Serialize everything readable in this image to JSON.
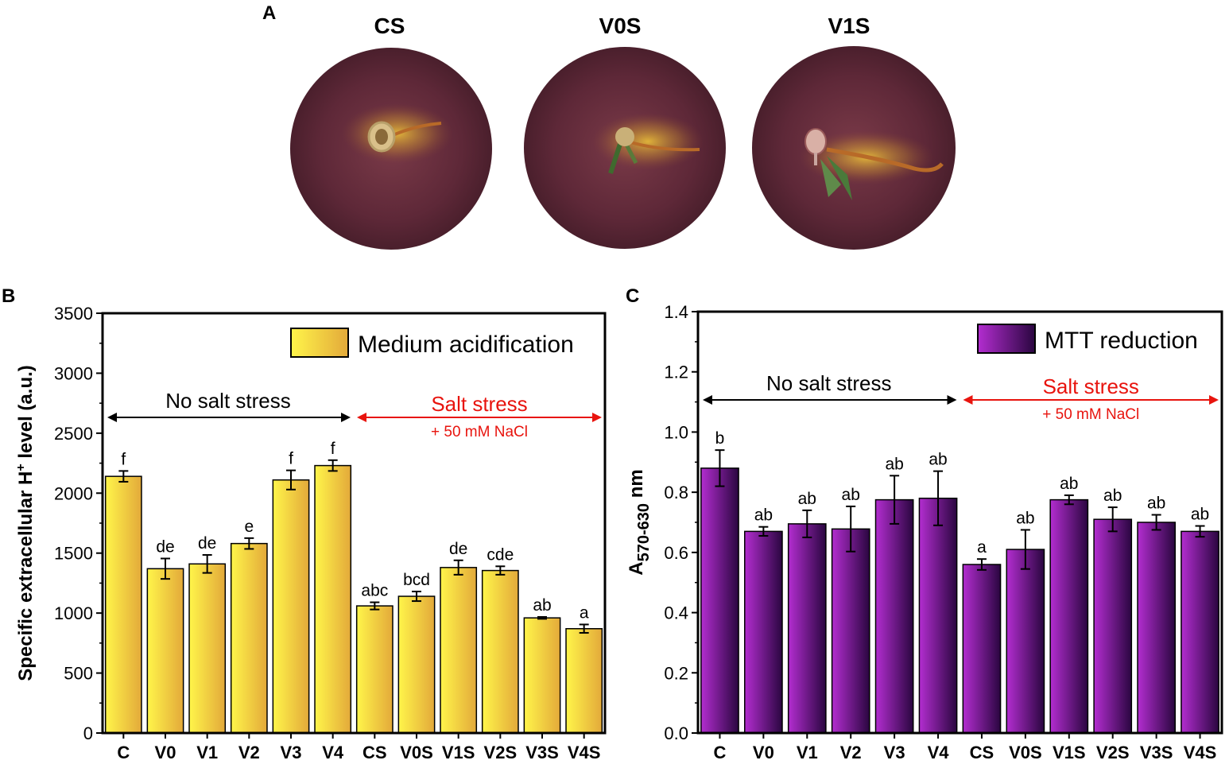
{
  "colors": {
    "yellow_light": "#fff54a",
    "yellow_dark": "#e3a93a",
    "purple_light": "#b32dd0",
    "purple_dark": "#2a0640",
    "black": "#000000",
    "red": "#e8140e",
    "dish_outer": "#5a2635",
    "dish_inner": "#6b3340"
  },
  "panel_a": {
    "letter": "A",
    "photos": [
      {
        "label": "CS",
        "icon": "seedling-dish-icon"
      },
      {
        "label": "V0S",
        "icon": "seedling-dish-icon"
      },
      {
        "label": "V1S",
        "icon": "seedling-dish-icon"
      }
    ]
  },
  "chart_data": [
    {
      "panel": "B",
      "type": "bar",
      "ylabel": "Specific extracellular H+ level (a.u.)",
      "ylabel_main": "Specific extracellular H",
      "ylabel_sup": "+",
      "ylabel_tail": " level (a.u.)",
      "xlabel": "",
      "ylim": [
        0,
        3500
      ],
      "yticks": [
        0,
        500,
        1000,
        1500,
        2000,
        2500,
        3000,
        3500
      ],
      "legend": "Medium acidification",
      "legend_position": "top-right",
      "categories": [
        "C",
        "V0",
        "V1",
        "V2",
        "V3",
        "V4",
        "CS",
        "V0S",
        "V1S",
        "V2S",
        "V3S",
        "V4S"
      ],
      "values": [
        2140,
        1370,
        1410,
        1580,
        2110,
        2230,
        1060,
        1140,
        1380,
        1355,
        960,
        870
      ],
      "errors": [
        45,
        85,
        75,
        45,
        80,
        45,
        30,
        40,
        60,
        35,
        8,
        35
      ],
      "letters": [
        "f",
        "de",
        "de",
        "e",
        "f",
        "f",
        "abc",
        "bcd",
        "de",
        "cde",
        "ab",
        "a"
      ],
      "annotations": {
        "no_salt": "No salt stress",
        "salt": "Salt stress",
        "salt_sub": "+ 50 mM NaCl"
      }
    },
    {
      "panel": "C",
      "type": "bar",
      "ylabel": "A570-630 nm",
      "ylabel_main": "A",
      "ylabel_sub": "570-630",
      "ylabel_tail": " nm",
      "xlabel": "",
      "ylim": [
        0,
        1.4
      ],
      "yticks": [
        0.0,
        0.2,
        0.4,
        0.6,
        0.8,
        1.0,
        1.2,
        1.4
      ],
      "yticklabels": [
        "0.0",
        "0.2",
        "0.4",
        "0.6",
        "0.8",
        "1.0",
        "1.2",
        "1.4"
      ],
      "legend": "MTT reduction",
      "legend_position": "top-right",
      "categories": [
        "C",
        "V0",
        "V1",
        "V2",
        "V3",
        "V4",
        "CS",
        "V0S",
        "V1S",
        "V2S",
        "V3S",
        "V4S"
      ],
      "values": [
        0.88,
        0.67,
        0.695,
        0.678,
        0.775,
        0.78,
        0.56,
        0.61,
        0.775,
        0.71,
        0.7,
        0.67
      ],
      "errors": [
        0.06,
        0.015,
        0.045,
        0.075,
        0.08,
        0.09,
        0.018,
        0.065,
        0.015,
        0.04,
        0.025,
        0.018
      ],
      "letters": [
        "b",
        "ab",
        "ab",
        "ab",
        "ab",
        "ab",
        "a",
        "ab",
        "ab",
        "ab",
        "ab",
        "ab"
      ],
      "annotations": {
        "no_salt": "No salt stress",
        "salt": "Salt stress",
        "salt_sub": "+ 50 mM NaCl"
      }
    }
  ]
}
